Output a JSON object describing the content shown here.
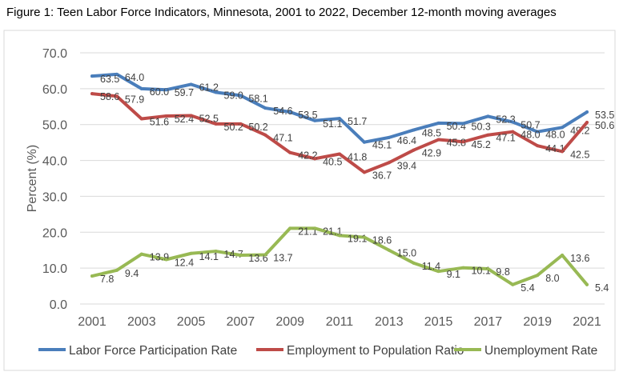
{
  "chart_data": {
    "type": "line",
    "title": "Figure 1: Teen Labor Force Indicators, Minnesota, 2001 to 2022, December 12-month moving averages",
    "ylabel": "Percent (%)",
    "xlabel": "",
    "ylim": [
      0,
      70
    ],
    "yticks": [
      "0.0",
      "10.0",
      "20.0",
      "30.0",
      "40.0",
      "50.0",
      "60.0",
      "70.0"
    ],
    "x": [
      2001,
      2002,
      2003,
      2004,
      2005,
      2006,
      2007,
      2008,
      2009,
      2010,
      2011,
      2012,
      2013,
      2014,
      2015,
      2016,
      2017,
      2018,
      2019,
      2020,
      2021
    ],
    "xtick_labels": [
      "2001",
      "2003",
      "2005",
      "2007",
      "2009",
      "2011",
      "2013",
      "2015",
      "2017",
      "2019",
      "2021"
    ],
    "grid": true,
    "legend": "bottom",
    "series": [
      {
        "name": "Labor Force Participation Rate",
        "color": "#4a7ebb",
        "values": [
          63.5,
          64.0,
          60.0,
          59.7,
          61.2,
          59.0,
          58.1,
          54.6,
          53.5,
          51.1,
          51.7,
          45.1,
          46.4,
          48.5,
          50.4,
          50.3,
          52.3,
          50.7,
          48.0,
          49.2,
          53.5
        ]
      },
      {
        "name": "Employment to Population Ratio",
        "color": "#be4b48",
        "values": [
          58.6,
          57.9,
          51.6,
          52.4,
          52.5,
          50.2,
          50.2,
          47.1,
          42.2,
          40.5,
          41.8,
          36.7,
          39.4,
          42.9,
          45.8,
          45.2,
          47.1,
          48.0,
          44.1,
          42.5,
          50.6
        ]
      },
      {
        "name": "Unemployment Rate",
        "color": "#98b954",
        "values": [
          7.8,
          9.4,
          13.9,
          12.4,
          14.1,
          14.7,
          13.6,
          13.7,
          21.1,
          21.1,
          19.1,
          18.6,
          15.0,
          11.4,
          9.1,
          10.1,
          9.8,
          5.4,
          8.0,
          13.6,
          5.4
        ]
      }
    ]
  }
}
